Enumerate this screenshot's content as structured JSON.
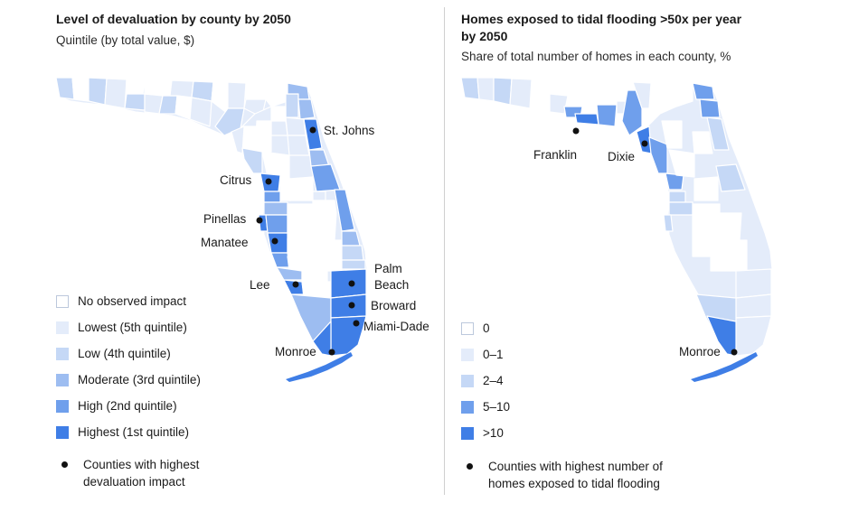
{
  "colors": {
    "c0": "#ffffff",
    "c1": "#e4ecfa",
    "c2": "#c5d8f6",
    "c3": "#9dbdf1",
    "c4": "#6f9fec",
    "c5": "#3f7ee6",
    "outline": "#ffffff",
    "dot": "#111111"
  },
  "left": {
    "title": "Level of devaluation by county by 2050",
    "subtitle": "Quintile (by total value, $)",
    "legend": [
      {
        "label": "No observed impact",
        "color": "c0"
      },
      {
        "label": "Lowest (5th quintile)",
        "color": "c1"
      },
      {
        "label": "Low (4th quintile)",
        "color": "c2"
      },
      {
        "label": "Moderate (3rd quintile)",
        "color": "c3"
      },
      {
        "label": "High (2nd quintile)",
        "color": "c4"
      },
      {
        "label": "Highest (1st quintile)",
        "color": "c5"
      }
    ],
    "dot_note_line1": "Counties with highest",
    "dot_note_line2": "devaluation impact",
    "counties": {
      "st_johns": "St. Johns",
      "citrus": "Citrus",
      "pinellas": "Pinellas",
      "manatee": "Manatee",
      "lee": "Lee",
      "palm_beach_line1": "Palm",
      "palm_beach_line2": "Beach",
      "broward": "Broward",
      "miami_dade": "Miami-Dade",
      "monroe": "Monroe"
    }
  },
  "right": {
    "title_line1": "Homes exposed to tidal flooding >50x per year",
    "title_line2": "by 2050",
    "subtitle": "Share of total number of homes in each county, %",
    "legend": [
      {
        "label": "0",
        "color": "c0"
      },
      {
        "label": "0–1",
        "color": "c1"
      },
      {
        "label": "2–4",
        "color": "c2"
      },
      {
        "label": "5–10",
        "color": "c4"
      },
      {
        "label": ">10",
        "color": "c5"
      }
    ],
    "dot_note_line1": "Counties with highest number of",
    "dot_note_line2": "homes exposed to tidal flooding",
    "counties": {
      "franklin": "Franklin",
      "dixie": "Dixie",
      "monroe": "Monroe"
    }
  }
}
